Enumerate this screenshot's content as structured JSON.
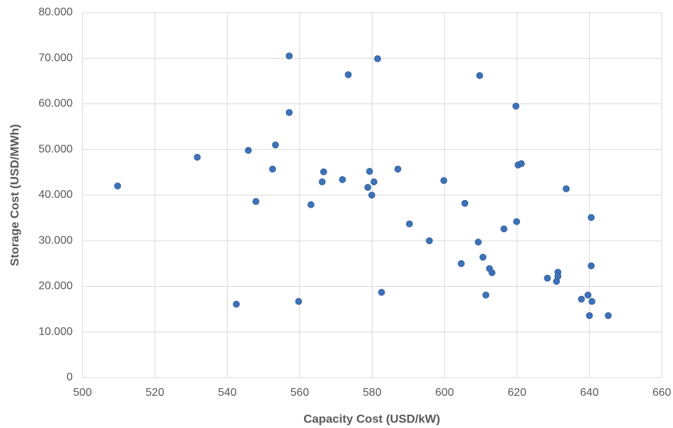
{
  "chart_data": {
    "type": "scatter",
    "xlabel": "Capacity Cost (USD/kW)",
    "ylabel": "Storage Cost (USD/MWh)",
    "color": "#3d72b8",
    "grid": true,
    "xlim": [
      500,
      660
    ],
    "xticks": [
      500,
      520,
      540,
      560,
      580,
      600,
      620,
      640,
      660
    ],
    "ylim": [
      0,
      80
    ],
    "yticks": [
      0,
      {
        "value": 10,
        "label": "10.000"
      },
      {
        "value": 20,
        "label": "20.000"
      },
      {
        "value": 30,
        "label": "30.000"
      },
      {
        "value": 40,
        "label": "40.000"
      },
      {
        "value": 50,
        "label": "50.000"
      },
      {
        "value": 60,
        "label": "60.000"
      },
      {
        "value": 70,
        "label": "70.000"
      },
      {
        "value": 80,
        "label": "80.000"
      }
    ],
    "x": [
      509.7,
      531.7,
      542.5,
      545.8,
      547.9,
      552.5,
      553.3,
      557.1,
      557.1,
      559.7,
      563.1,
      566.2,
      566.6,
      571.8,
      573.4,
      578.8,
      579.3,
      579.9,
      580.5,
      581.5,
      582.6,
      587.1,
      590.3,
      595.8,
      599.8,
      604.6,
      605.6,
      609.7,
      609.3,
      610.6,
      611.4,
      612.4,
      613.1,
      616.4,
      619.7,
      619.9,
      620.3,
      621.2,
      628.4,
      630.9,
      631.3,
      631.3,
      633.6,
      637.8,
      639.6,
      640.0,
      640.5,
      640.5,
      640.7,
      645.2
    ],
    "values": [
      42.0,
      48.3,
      16.1,
      49.8,
      38.6,
      45.7,
      51.0,
      70.5,
      58.1,
      16.7,
      37.9,
      42.9,
      45.1,
      43.4,
      66.4,
      41.7,
      45.2,
      40.0,
      42.9,
      69.9,
      18.7,
      45.7,
      33.7,
      30.0,
      43.2,
      25.0,
      38.2,
      66.2,
      29.7,
      26.4,
      18.1,
      23.9,
      23.0,
      32.6,
      59.5,
      34.2,
      46.6,
      46.9,
      21.8,
      21.1,
      23.1,
      22.2,
      41.4,
      17.2,
      18.1,
      13.6,
      35.1,
      24.5,
      16.7,
      13.6
    ]
  }
}
